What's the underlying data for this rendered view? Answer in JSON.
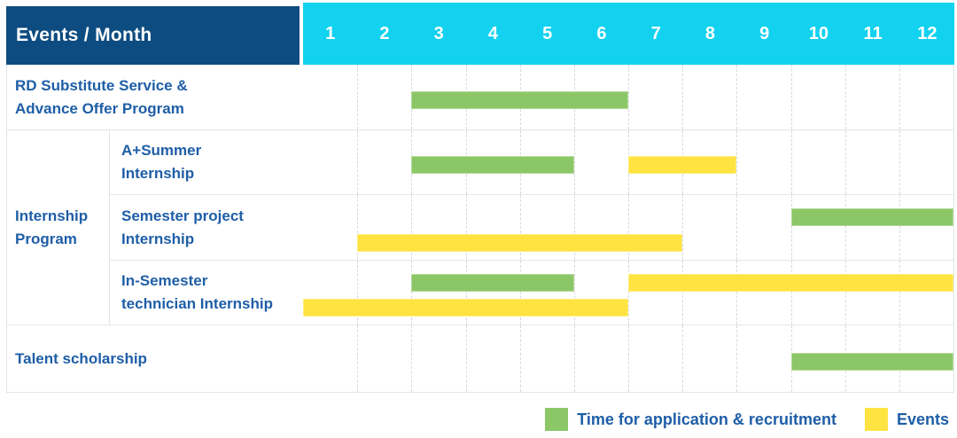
{
  "header": {
    "corner_label": "Events / Month",
    "months": [
      "1",
      "2",
      "3",
      "4",
      "5",
      "6",
      "7",
      "8",
      "9",
      "10",
      "11",
      "12"
    ]
  },
  "colors": {
    "navy": "#0d4c80",
    "cyan": "#12d2f0",
    "green": "#8cc767",
    "yellow": "#ffe340",
    "text-blue": "#1e5ea7"
  },
  "legend": {
    "items": [
      {
        "type": "application",
        "label": "Time for application & recruitment",
        "color": "#8cc767"
      },
      {
        "type": "event",
        "label": "Events",
        "color": "#ffe340"
      }
    ]
  },
  "chart_data": {
    "type": "gantt",
    "x_axis": {
      "label": "Month",
      "ticks": [
        1,
        2,
        3,
        4,
        5,
        6,
        7,
        8,
        9,
        10,
        11,
        12
      ],
      "range": [
        1,
        12
      ]
    },
    "group_label": "Internship\nProgram",
    "bar_types": {
      "application": {
        "label": "Time for application & recruitment",
        "color": "#8cc767"
      },
      "event": {
        "label": "Events",
        "color": "#ffe340"
      }
    },
    "rows": [
      {
        "label": "RD Substitute Service &\nAdvance Offer Program",
        "group": null,
        "bars": [
          {
            "type": "application",
            "start": 3,
            "end": 6,
            "lane": "mid"
          }
        ]
      },
      {
        "label": "A+Summer\nInternship",
        "group": "Internship Program",
        "bars": [
          {
            "type": "application",
            "start": 3,
            "end": 5,
            "lane": "mid"
          },
          {
            "type": "event",
            "start": 7,
            "end": 8,
            "lane": "mid"
          }
        ]
      },
      {
        "label": "Semester project\nInternship",
        "group": "Internship Program",
        "bars": [
          {
            "type": "application",
            "start": 10,
            "end": 12,
            "lane": "top"
          },
          {
            "type": "event",
            "start": 2,
            "end": 7,
            "lane": "bottom"
          }
        ]
      },
      {
        "label": "In-Semester\ntechnician Internship",
        "group": "Internship Program",
        "bars": [
          {
            "type": "application",
            "start": 3,
            "end": 5,
            "lane": "top"
          },
          {
            "type": "event",
            "start": 7,
            "end": 12,
            "lane": "top"
          },
          {
            "type": "event",
            "start": 1,
            "end": 6,
            "lane": "bottom"
          }
        ]
      },
      {
        "label": "Talent scholarship",
        "group": null,
        "bars": [
          {
            "type": "application",
            "start": 10,
            "end": 12,
            "lane": "mid"
          }
        ]
      }
    ]
  }
}
